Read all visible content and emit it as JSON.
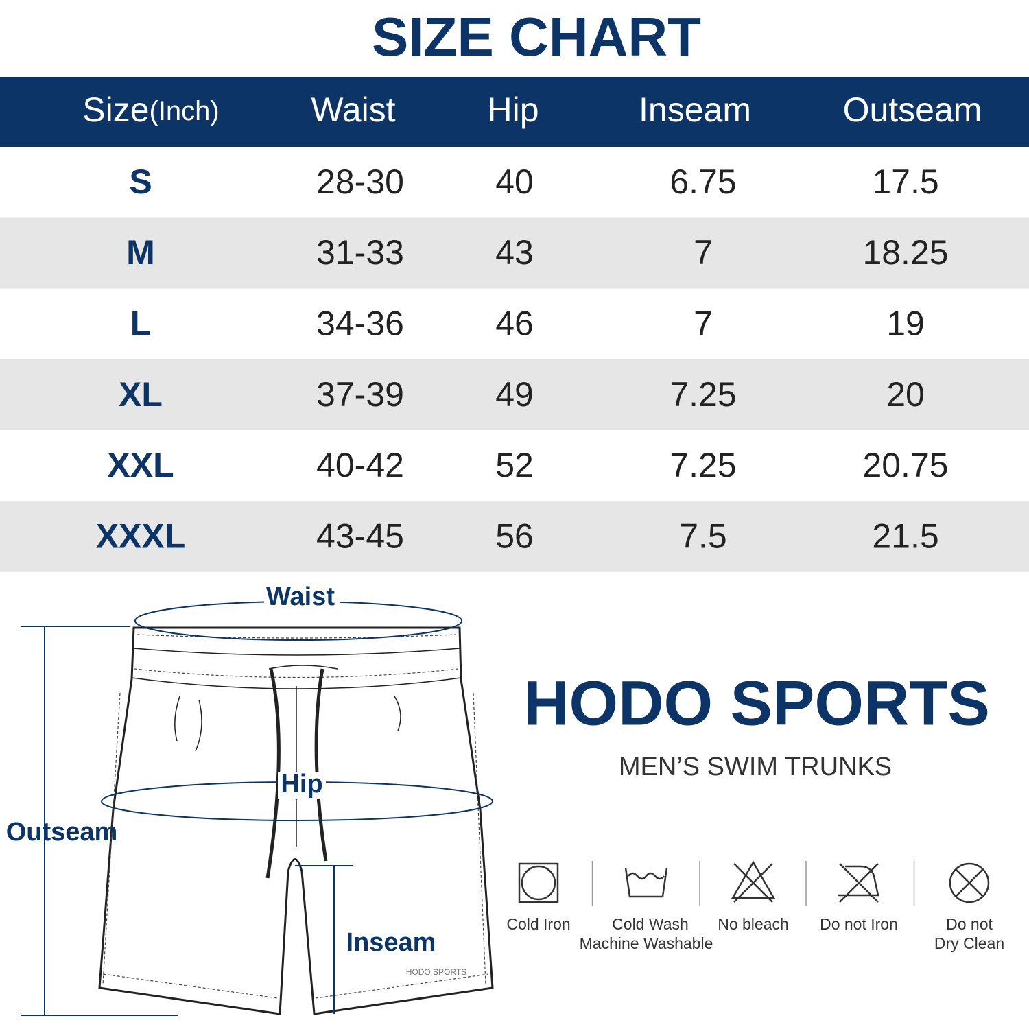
{
  "title": "SIZE CHART",
  "table": {
    "header": {
      "size": {
        "label": "Size",
        "unit": "(Inch)"
      },
      "columns": [
        "Waist",
        "Hip",
        "Inseam",
        "Outseam"
      ]
    },
    "rows": [
      [
        "S",
        "28-30",
        "40",
        "6.75",
        "17.5"
      ],
      [
        "M",
        "31-33",
        "43",
        "7",
        "18.25"
      ],
      [
        "L",
        "34-36",
        "46",
        "7",
        "19"
      ],
      [
        "XL",
        "37-39",
        "49",
        "7.25",
        "20"
      ],
      [
        "XXL",
        "40-42",
        "52",
        "7.25",
        "20.75"
      ],
      [
        "XXXL",
        "43-45",
        "56",
        "7.5",
        "21.5"
      ]
    ]
  },
  "diagram": {
    "waist": "Waist",
    "hip": "Hip",
    "outseam": "Outseam",
    "inseam": "Inseam",
    "watermark": "HODO SPORTS"
  },
  "brand": {
    "name": "HODO SPORTS",
    "subtitle": "MEN’S SWIM TRUNKS"
  },
  "care": [
    {
      "icon": "iron",
      "lines": [
        "Cold Iron"
      ]
    },
    {
      "icon": "wash",
      "lines": [
        "Cold Wash",
        "Machine Washable"
      ]
    },
    {
      "icon": "bleach",
      "lines": [
        "No bleach"
      ]
    },
    {
      "icon": "noiron",
      "lines": [
        "Do not Iron"
      ]
    },
    {
      "icon": "dryclean",
      "lines": [
        "Do not",
        "Dry Clean"
      ]
    }
  ]
}
